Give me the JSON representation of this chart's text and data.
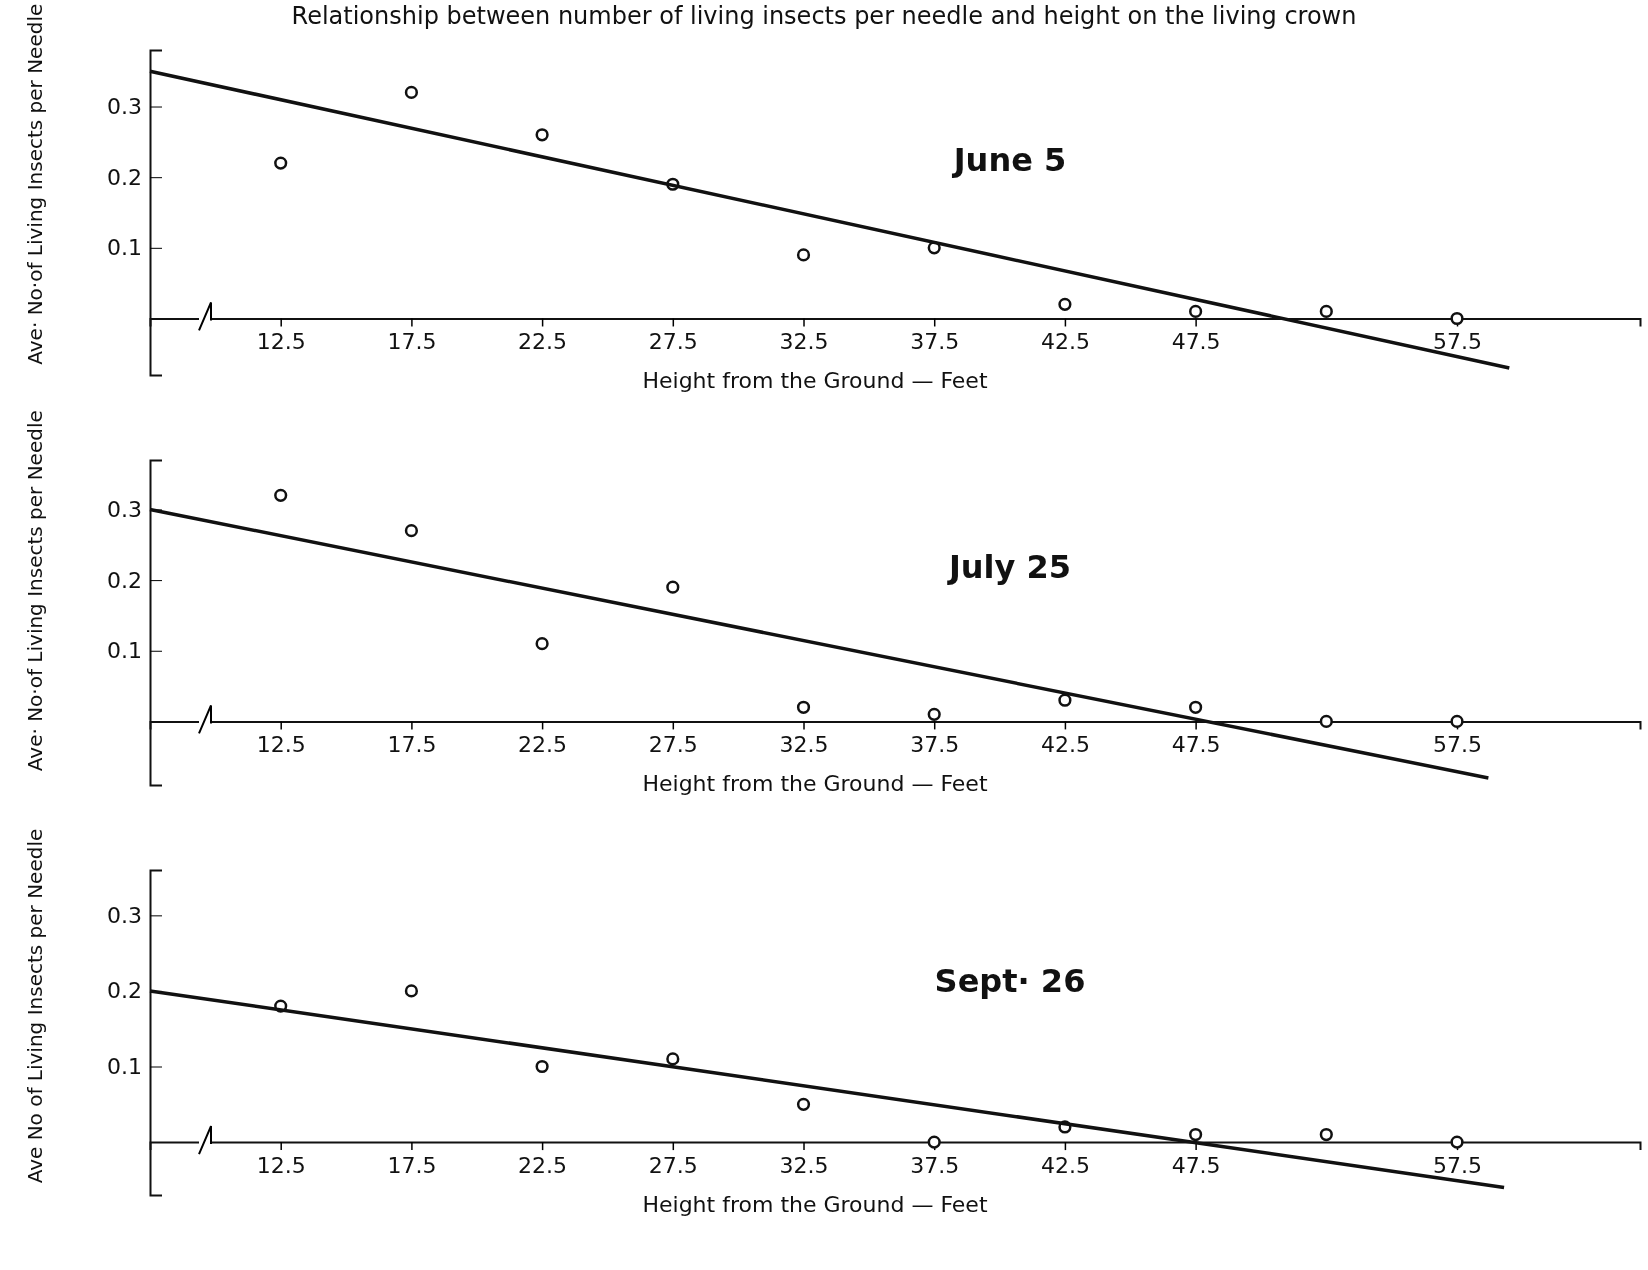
{
  "chart_data": [
    {
      "type": "scatter",
      "title": "Relationship between number of living insects per needle and height on the living crown",
      "xlabel": "Height from the Ground — Feet",
      "ylabel": "Ave· No·of Living Insects per Needle",
      "annotations": [
        "June 5"
      ],
      "xlim": [
        7.5,
        64.5
      ],
      "xticks": [
        12.5,
        17.5,
        22.5,
        27.5,
        32.5,
        37.5,
        42.5,
        47.5,
        57.5
      ],
      "ylim": [
        -0.08,
        0.38
      ],
      "yticks": [
        0.1,
        0.2,
        0.3
      ],
      "series": [
        {
          "color": "#111111",
          "marker": "circle",
          "x": [
            12.5,
            17.5,
            22.5,
            27.5,
            32.5,
            37.5,
            42.5,
            47.5,
            52.5,
            57.5
          ],
          "values": [
            0.22,
            0.32,
            0.26,
            0.19,
            0.09,
            0.1,
            0.02,
            0.01,
            0.01,
            0.0
          ]
        },
        {
          "type": "line",
          "color": "#111111",
          "x": [
            7.5,
            59.5
          ],
          "values": [
            0.35,
            -0.07
          ]
        }
      ]
    },
    {
      "type": "scatter",
      "xlabel": "Height from the Ground — Feet",
      "ylabel": "Ave· No·of Living Insects per Needle",
      "annotations": [
        "July 25"
      ],
      "xlim": [
        7.5,
        64.5
      ],
      "xticks": [
        12.5,
        17.5,
        22.5,
        27.5,
        32.5,
        37.5,
        42.5,
        47.5,
        57.5
      ],
      "ylim": [
        -0.09,
        0.37
      ],
      "yticks": [
        0.1,
        0.2,
        0.3
      ],
      "series": [
        {
          "color": "#111111",
          "marker": "circle",
          "x": [
            12.5,
            17.5,
            22.5,
            27.5,
            32.5,
            37.5,
            42.5,
            47.5,
            52.5,
            57.5
          ],
          "values": [
            0.32,
            0.27,
            0.11,
            0.19,
            0.02,
            0.01,
            0.03,
            0.02,
            0.0,
            0.0
          ]
        },
        {
          "type": "line",
          "color": "#111111",
          "x": [
            7.5,
            58.7
          ],
          "values": [
            0.3,
            -0.08
          ]
        }
      ]
    },
    {
      "type": "scatter",
      "xlabel": "Height from the Ground — Feet",
      "ylabel": "Ave No of Living Insects per Needle",
      "annotations": [
        "Sept· 26"
      ],
      "xlim": [
        7.5,
        64.5
      ],
      "xticks": [
        12.5,
        17.5,
        22.5,
        27.5,
        32.5,
        37.5,
        42.5,
        47.5,
        57.5
      ],
      "ylim": [
        -0.07,
        0.36
      ],
      "yticks": [
        0.1,
        0.2,
        0.3
      ],
      "series": [
        {
          "color": "#111111",
          "marker": "circle",
          "x": [
            12.5,
            17.5,
            22.5,
            27.5,
            32.5,
            37.5,
            42.5,
            47.5,
            52.5,
            57.5
          ],
          "values": [
            0.18,
            0.2,
            0.1,
            0.11,
            0.05,
            0.0,
            0.02,
            0.01,
            0.01,
            0.0
          ]
        },
        {
          "type": "line",
          "color": "#111111",
          "x": [
            7.5,
            59.3
          ],
          "values": [
            0.2,
            -0.06
          ]
        }
      ]
    }
  ]
}
